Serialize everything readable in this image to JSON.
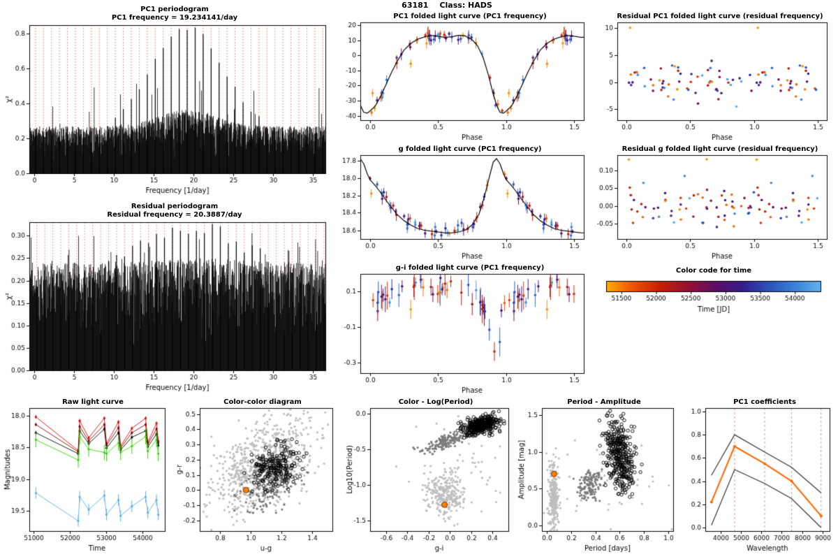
{
  "header": {
    "object_id": "63181",
    "class_label": "Class: HADS"
  },
  "time_colormap": {
    "stops": [
      [
        51150,
        "#FFAE00"
      ],
      [
        51650,
        "#EF5500"
      ],
      [
        52050,
        "#C82000"
      ],
      [
        52450,
        "#951133"
      ],
      [
        52850,
        "#5E0E63"
      ],
      [
        53250,
        "#331E8C"
      ],
      [
        53650,
        "#2C55BE"
      ],
      [
        54050,
        "#3F87DC"
      ],
      [
        54380,
        "#62B4EF"
      ]
    ]
  },
  "chart_data": [
    {
      "id": "pc1-periodogram",
      "type": "periodogram",
      "title": "PC1 periodogram",
      "subtitle": "PC1 frequency = 19.234141/day",
      "peak_freq": 19.234141,
      "alias_spacing": 1.0027,
      "axes": {
        "xlim": [
          -0.6,
          36.6
        ],
        "ylim": [
          0,
          0.85
        ],
        "xticks": [
          0,
          5,
          10,
          15,
          20,
          25,
          30,
          35
        ],
        "xfmt": 0,
        "yticks": [
          0,
          0.2,
          0.4,
          0.6,
          0.8
        ],
        "yfmt": 1,
        "xlabel": "Frequency [1/day]",
        "ylabel": "χ²"
      },
      "noise": {
        "seed": 11,
        "floor": 0.03,
        "amp": 0.24,
        "pow": 0.25,
        "env_amp": 0.35,
        "env_width": 5,
        "spike_prob": 0.02,
        "spike_amp": 0.3
      },
      "peaks": {
        "base": 0.2,
        "amp": 0.62,
        "width": 6.5
      }
    },
    {
      "id": "residual-periodogram",
      "type": "periodogram",
      "title": "Residual periodogram",
      "subtitle": "Residual frequency = 20.3887/day",
      "peak_freq": 20.3887,
      "alias_spacing": 1.0027,
      "axes": {
        "xlim": [
          -0.6,
          36.6
        ],
        "ylim": [
          0,
          0.33
        ],
        "xticks": [
          0,
          5,
          10,
          15,
          20,
          25,
          30,
          35
        ],
        "xfmt": 0,
        "yticks": [
          0,
          0.05,
          0.1,
          0.15,
          0.2,
          0.25,
          0.3
        ],
        "yfmt": 2,
        "xlabel": "Frequency [1/day]",
        "ylabel": "χ²"
      },
      "noise": {
        "seed": 12,
        "floor": 0.03,
        "amp": 0.21,
        "pow": 0.3,
        "env_amp": 0.04,
        "env_width": 8,
        "spike_prob": 0.05,
        "spike_amp": 0.08
      },
      "peaks": {
        "base": 0.17,
        "amp": 0.13,
        "width": 10
      }
    },
    {
      "id": "pc1-folded",
      "type": "folded",
      "title": "PC1 folded light curve (PC1 frequency)",
      "axes": {
        "xlim": [
          -0.07,
          1.57
        ],
        "ylim": [
          -43,
          22
        ],
        "xticks": [
          0,
          0.5,
          1,
          1.5
        ],
        "xfmt": 1,
        "yticks": [
          20,
          10,
          0,
          -10,
          -20,
          -30,
          -40
        ],
        "yfmt": 0,
        "xlabel": "Phase"
      },
      "n": 46,
      "seed": 21,
      "scatter_sd": 2.2,
      "err_base": 2.8,
      "draw_model": true,
      "model": [
        [
          0,
          -37
        ],
        [
          0.04,
          -33.5
        ],
        [
          0.08,
          -27
        ],
        [
          0.12,
          -19
        ],
        [
          0.16,
          -11
        ],
        [
          0.2,
          -4
        ],
        [
          0.25,
          3.5
        ],
        [
          0.3,
          8
        ],
        [
          0.35,
          10.8
        ],
        [
          0.4,
          12.3
        ],
        [
          0.45,
          13.3
        ],
        [
          0.5,
          12.8
        ],
        [
          0.55,
          12
        ],
        [
          0.6,
          12.4
        ],
        [
          0.65,
          13.4
        ],
        [
          0.7,
          13
        ],
        [
          0.75,
          10.5
        ],
        [
          0.79,
          6.5
        ],
        [
          0.83,
          -1
        ],
        [
          0.87,
          -13
        ],
        [
          0.9,
          -24
        ],
        [
          0.93,
          -33
        ],
        [
          0.955,
          -37.8
        ],
        [
          0.98,
          -38.3
        ],
        [
          1,
          -37
        ]
      ],
      "outliers": [
        {
          "phase": 0.02,
          "y": -25,
          "t": 51300
        },
        {
          "phase": 0.3,
          "y": -5.5,
          "t": 51350
        }
      ]
    },
    {
      "id": "g-folded",
      "type": "folded",
      "title": "g folded light curve (PC1 frequency)",
      "axes": {
        "xlim": [
          -0.07,
          1.57
        ],
        "ylim": [
          18.7,
          17.74
        ],
        "xticks": [
          0,
          0.5,
          1,
          1.5
        ],
        "xfmt": 1,
        "yticks": [
          17.8,
          18,
          18.2,
          18.4,
          18.6
        ],
        "yfmt": 1,
        "xlabel": "Phase"
      },
      "n": 46,
      "seed": 22,
      "scatter_sd": 0.035,
      "err_base": 0.05,
      "draw_model": true,
      "model": [
        [
          0,
          18.02
        ],
        [
          0.04,
          18.09
        ],
        [
          0.08,
          18.17
        ],
        [
          0.12,
          18.26
        ],
        [
          0.16,
          18.34
        ],
        [
          0.2,
          18.42
        ],
        [
          0.25,
          18.49
        ],
        [
          0.3,
          18.54
        ],
        [
          0.35,
          18.58
        ],
        [
          0.4,
          18.6
        ],
        [
          0.45,
          18.61
        ],
        [
          0.5,
          18.62
        ],
        [
          0.55,
          18.63
        ],
        [
          0.6,
          18.63
        ],
        [
          0.65,
          18.62
        ],
        [
          0.7,
          18.6
        ],
        [
          0.75,
          18.54
        ],
        [
          0.8,
          18.42
        ],
        [
          0.84,
          18.22
        ],
        [
          0.88,
          17.97
        ],
        [
          0.905,
          17.82
        ],
        [
          0.93,
          17.78
        ],
        [
          0.955,
          17.84
        ],
        [
          0.98,
          17.95
        ],
        [
          1,
          18.02
        ]
      ],
      "outliers": [
        {
          "phase": 0.01,
          "y": 18.18,
          "t": 51300
        }
      ]
    },
    {
      "id": "gi-folded",
      "type": "folded",
      "title": "g-i folded light curve (PC1 frequency)",
      "axes": {
        "xlim": [
          -0.07,
          1.57
        ],
        "ylim": [
          -0.36,
          0.2
        ],
        "xticks": [
          0,
          0.5,
          1,
          1.5
        ],
        "xfmt": 1,
        "yticks": [
          0.1,
          -0.1,
          -0.3
        ],
        "yfmt": 1,
        "xlabel": "Phase"
      },
      "n": 46,
      "seed": 23,
      "scatter_sd": 0.03,
      "err_base": 0.055,
      "draw_model": false,
      "model": [
        [
          0,
          0.05
        ],
        [
          0.08,
          0.07
        ],
        [
          0.16,
          0.1
        ],
        [
          0.24,
          0.12
        ],
        [
          0.32,
          0.14
        ],
        [
          0.4,
          0.13
        ],
        [
          0.48,
          0.12
        ],
        [
          0.56,
          0.12
        ],
        [
          0.64,
          0.13
        ],
        [
          0.72,
          0.12
        ],
        [
          0.78,
          0.09
        ],
        [
          0.83,
          0.02
        ],
        [
          0.88,
          -0.12
        ],
        [
          0.915,
          -0.24
        ],
        [
          0.94,
          -0.2
        ],
        [
          0.97,
          -0.05
        ],
        [
          1,
          0.05
        ]
      ],
      "outliers": [
        {
          "phase": 0.3,
          "y": 0.0,
          "t": 51300
        }
      ]
    },
    {
      "id": "residual-pc1-folded",
      "type": "residual",
      "title": "Residual PC1 folded light curve (residual frequency)",
      "axes": {
        "xlim": [
          -0.07,
          1.57
        ],
        "ylim": [
          -7,
          11
        ],
        "xticks": [
          0,
          0.5,
          1,
          1.5
        ],
        "xfmt": 1,
        "yticks": [
          -5,
          0,
          5,
          10
        ],
        "yfmt": 0,
        "xlabel": "Phase"
      },
      "n": 60,
      "seed": 24,
      "sd": 1.9,
      "outliers": [
        {
          "phase": 0.03,
          "y": 10,
          "t": 51280
        }
      ]
    },
    {
      "id": "residual-g-folded",
      "type": "residual",
      "title": "Residual g folded light curve (residual frequency)",
      "axes": {
        "xlim": [
          -0.07,
          1.57
        ],
        "ylim": [
          -0.095,
          0.145
        ],
        "xticks": [
          0,
          0.5,
          1,
          1.5
        ],
        "xfmt": 1,
        "yticks": [
          -0.05,
          0,
          0.05,
          0.1
        ],
        "yfmt": 2,
        "xlabel": "Phase"
      },
      "n": 60,
      "seed": 25,
      "sd": 0.032,
      "outliers": [
        {
          "phase": 0.02,
          "y": 0.132,
          "t": 51280
        },
        {
          "phase": 0.63,
          "y": 0.133,
          "t": 51300
        }
      ]
    },
    {
      "id": "time-colorbar",
      "type": "colorbar",
      "title": "Color code for time",
      "range": [
        51280,
        54380
      ],
      "ticks": [
        51500,
        52000,
        52500,
        53000,
        53500,
        54000
      ],
      "xlabel": "Time [JD]"
    },
    {
      "id": "raw-lightcurve",
      "type": "lightcurve",
      "title": "Raw light curve",
      "axes": {
        "xlim": [
          50880,
          54620
        ],
        "ylim": [
          19.82,
          17.88
        ],
        "xticks": [
          51000,
          52000,
          53000,
          54000
        ],
        "xfmt": 0,
        "yticks": [
          18,
          18.5,
          19,
          19.5
        ],
        "yfmt": 1,
        "xlabel": "Time",
        "ylabel": "Magnitudes"
      },
      "times": [
        51060,
        52230,
        52270,
        52520,
        52950,
        53010,
        53340,
        53400,
        53710,
        54090,
        54150,
        54390,
        54440
      ],
      "series": [
        {
          "name": "band-1",
          "color": "#E60000",
          "err": 0.03,
          "mags": [
            18.02,
            18.55,
            18.08,
            18.35,
            18.04,
            18.44,
            18.1,
            18.48,
            18.2,
            18.04,
            18.42,
            18.12,
            18.4
          ]
        },
        {
          "name": "band-2",
          "color": "#8B0000",
          "err": 0.03,
          "mags": [
            18.14,
            18.57,
            18.17,
            18.4,
            18.14,
            18.47,
            18.19,
            18.51,
            18.27,
            18.14,
            18.45,
            18.21,
            18.43
          ]
        },
        {
          "name": "band-3",
          "color": "#000000",
          "err": 0.03,
          "mags": [
            18.27,
            18.6,
            18.24,
            18.44,
            18.21,
            18.51,
            18.27,
            18.54,
            18.34,
            18.24,
            18.49,
            18.29,
            18.47
          ]
        },
        {
          "name": "band-4",
          "color": "#33D500",
          "err": 0.12,
          "mags": [
            18.38,
            18.7,
            18.33,
            18.53,
            18.58,
            18.6,
            18.43,
            18.58,
            18.48,
            18.33,
            18.56,
            18.38,
            18.6
          ]
        },
        {
          "name": "band-5",
          "color": "#5AAEE6",
          "err": 0.09,
          "mags": [
            19.22,
            19.66,
            19.28,
            19.48,
            19.26,
            19.56,
            19.33,
            19.58,
            19.43,
            19.28,
            19.53,
            19.33,
            19.56
          ]
        }
      ]
    },
    {
      "id": "color-color",
      "type": "clusters",
      "title": "Color-color diagram",
      "axes": {
        "xlim": [
          0.67,
          1.53
        ],
        "ylim": [
          -0.27,
          0.54
        ],
        "xticks": [
          0.8,
          1,
          1.2,
          1.4
        ],
        "xfmt": 1,
        "yticks": [
          -0.2,
          -0.1,
          0,
          0.1,
          0.2,
          0.3,
          0.4,
          0.5
        ],
        "yfmt": 1,
        "xlabel": "u-g",
        "ylabel": "g-r"
      },
      "clusters": [
        {
          "n": 800,
          "cx": 1.08,
          "cy": 0.16,
          "sdx": 0.17,
          "sdy": 0.13,
          "slope": 0.45,
          "color": "#BEBEBE",
          "r": 1.6,
          "seed": 31
        },
        {
          "n": 140,
          "cx": 1.12,
          "cy": 0.02,
          "sdx": 0.09,
          "sdy": 0.07,
          "slope": 0.3,
          "color": "#7A7A7A",
          "r": 1.6,
          "seed": 32
        },
        {
          "n": 210,
          "cx": 1.16,
          "cy": 0.15,
          "sdx": 0.075,
          "sdy": 0.07,
          "slope": 0.2,
          "color": "#000000",
          "open": true,
          "r": 2.2,
          "seed": 33
        }
      ],
      "highlight": {
        "x": 0.97,
        "y": 0.0,
        "color": "#FF7F00",
        "r": 4
      }
    },
    {
      "id": "color-logperiod",
      "type": "clusters",
      "title": "Color - Log(Period)",
      "axes": {
        "xlim": [
          -0.75,
          0.55
        ],
        "ylim": [
          -1.65,
          0.08
        ],
        "xticks": [
          -0.6,
          -0.4,
          -0.2,
          0,
          0.2,
          0.4
        ],
        "xfmt": 1,
        "yticks": [
          0,
          -0.5,
          -1,
          -1.5
        ],
        "yfmt": 1,
        "xlabel": "g-i",
        "ylabel": "Log10(Period)"
      },
      "clusters": [
        {
          "n": 260,
          "cx": -0.05,
          "cy": -1.13,
          "sdx": 0.09,
          "sdy": 0.16,
          "slope": 0,
          "color": "#BEBEBE",
          "r": 1.6,
          "seed": 41
        },
        {
          "n": 60,
          "cx": 0.1,
          "cy": -0.75,
          "sdx": 0.25,
          "sdy": 0.35,
          "slope": 0,
          "color": "#BEBEBE",
          "r": 1.6,
          "seed": 42
        },
        {
          "n": 150,
          "cx": -0.05,
          "cy": -0.4,
          "sdx": 0.1,
          "sdy": 0.05,
          "slope": 0.5,
          "color": "#7A7A7A",
          "r": 1.6,
          "seed": 43
        },
        {
          "n": 380,
          "cx": 0.3,
          "cy": -0.16,
          "sdx": 0.08,
          "sdy": 0.06,
          "slope": 0.35,
          "color": "#000000",
          "open": true,
          "r": 2.2,
          "seed": 44
        }
      ],
      "highlight": {
        "x": -0.05,
        "y": -1.28,
        "color": "#FF7F00",
        "r": 4
      }
    },
    {
      "id": "period-amplitude",
      "type": "clusters",
      "title": "Period - Amplitude",
      "axes": {
        "xlim": [
          -0.04,
          1.04
        ],
        "ylim": [
          -0.08,
          1.6
        ],
        "xticks": [
          0,
          0.2,
          0.4,
          0.6,
          0.8,
          1
        ],
        "xfmt": 1,
        "yticks": [
          0,
          0.5,
          1,
          1.5
        ],
        "yfmt": 1,
        "xlabel": "Period [days]",
        "ylabel": "Amplitude [mag]"
      },
      "clusters": [
        {
          "n": 280,
          "cx": 0.055,
          "cy": 0.42,
          "sdx": 0.02,
          "sdy": 0.22,
          "slope": 0,
          "color": "#BEBEBE",
          "r": 1.6,
          "seed": 51
        },
        {
          "n": 45,
          "cx": 0.5,
          "cy": 0.6,
          "sdx": 0.28,
          "sdy": 0.35,
          "slope": 0,
          "color": "#BEBEBE",
          "r": 1.6,
          "seed": 52
        },
        {
          "n": 130,
          "cx": 0.36,
          "cy": 0.55,
          "sdx": 0.05,
          "sdy": 0.09,
          "slope": 0.4,
          "color": "#7A7A7A",
          "r": 1.6,
          "seed": 53
        },
        {
          "n": 360,
          "cx": 0.6,
          "cy": 0.95,
          "sdx": 0.06,
          "sdy": 0.24,
          "slope": -1.5,
          "color": "#000000",
          "open": true,
          "r": 2.2,
          "seed": 54
        }
      ],
      "highlight": {
        "x": 0.06,
        "y": 0.7,
        "color": "#FF7F00",
        "r": 4
      }
    },
    {
      "id": "pc1-coefficients",
      "type": "lines",
      "title": "PC1 coefficients",
      "axes": {
        "xlim": [
          3250,
          9350
        ],
        "ylim": [
          -0.03,
          1.03
        ],
        "xticks": [
          4000,
          5000,
          6000,
          7000,
          8000,
          9000
        ],
        "xfmt": 0,
        "yticks": [
          0,
          0.2,
          0.4,
          0.6,
          0.8,
          1
        ],
        "yfmt": 1,
        "xlabel": "Wavelength"
      },
      "x": [
        3551,
        4686,
        6166,
        7481,
        8931
      ],
      "series": [
        {
          "name": "upper-band",
          "color": "#333333",
          "width": 1.2,
          "values": [
            0.45,
            0.8,
            0.65,
            0.52,
            0.3
          ]
        },
        {
          "name": "pc1",
          "color": "#FF6600",
          "width": 2,
          "points": true,
          "values": [
            0.22,
            0.7,
            0.55,
            0.4,
            0.1
          ]
        },
        {
          "name": "lower-band",
          "color": "#333333",
          "width": 1.2,
          "values": [
            0.02,
            0.5,
            0.38,
            0.25,
            0
          ]
        }
      ],
      "vlines": {
        "x": [
          4686,
          6166,
          7481,
          8931
        ],
        "color": "#E89090"
      }
    }
  ]
}
